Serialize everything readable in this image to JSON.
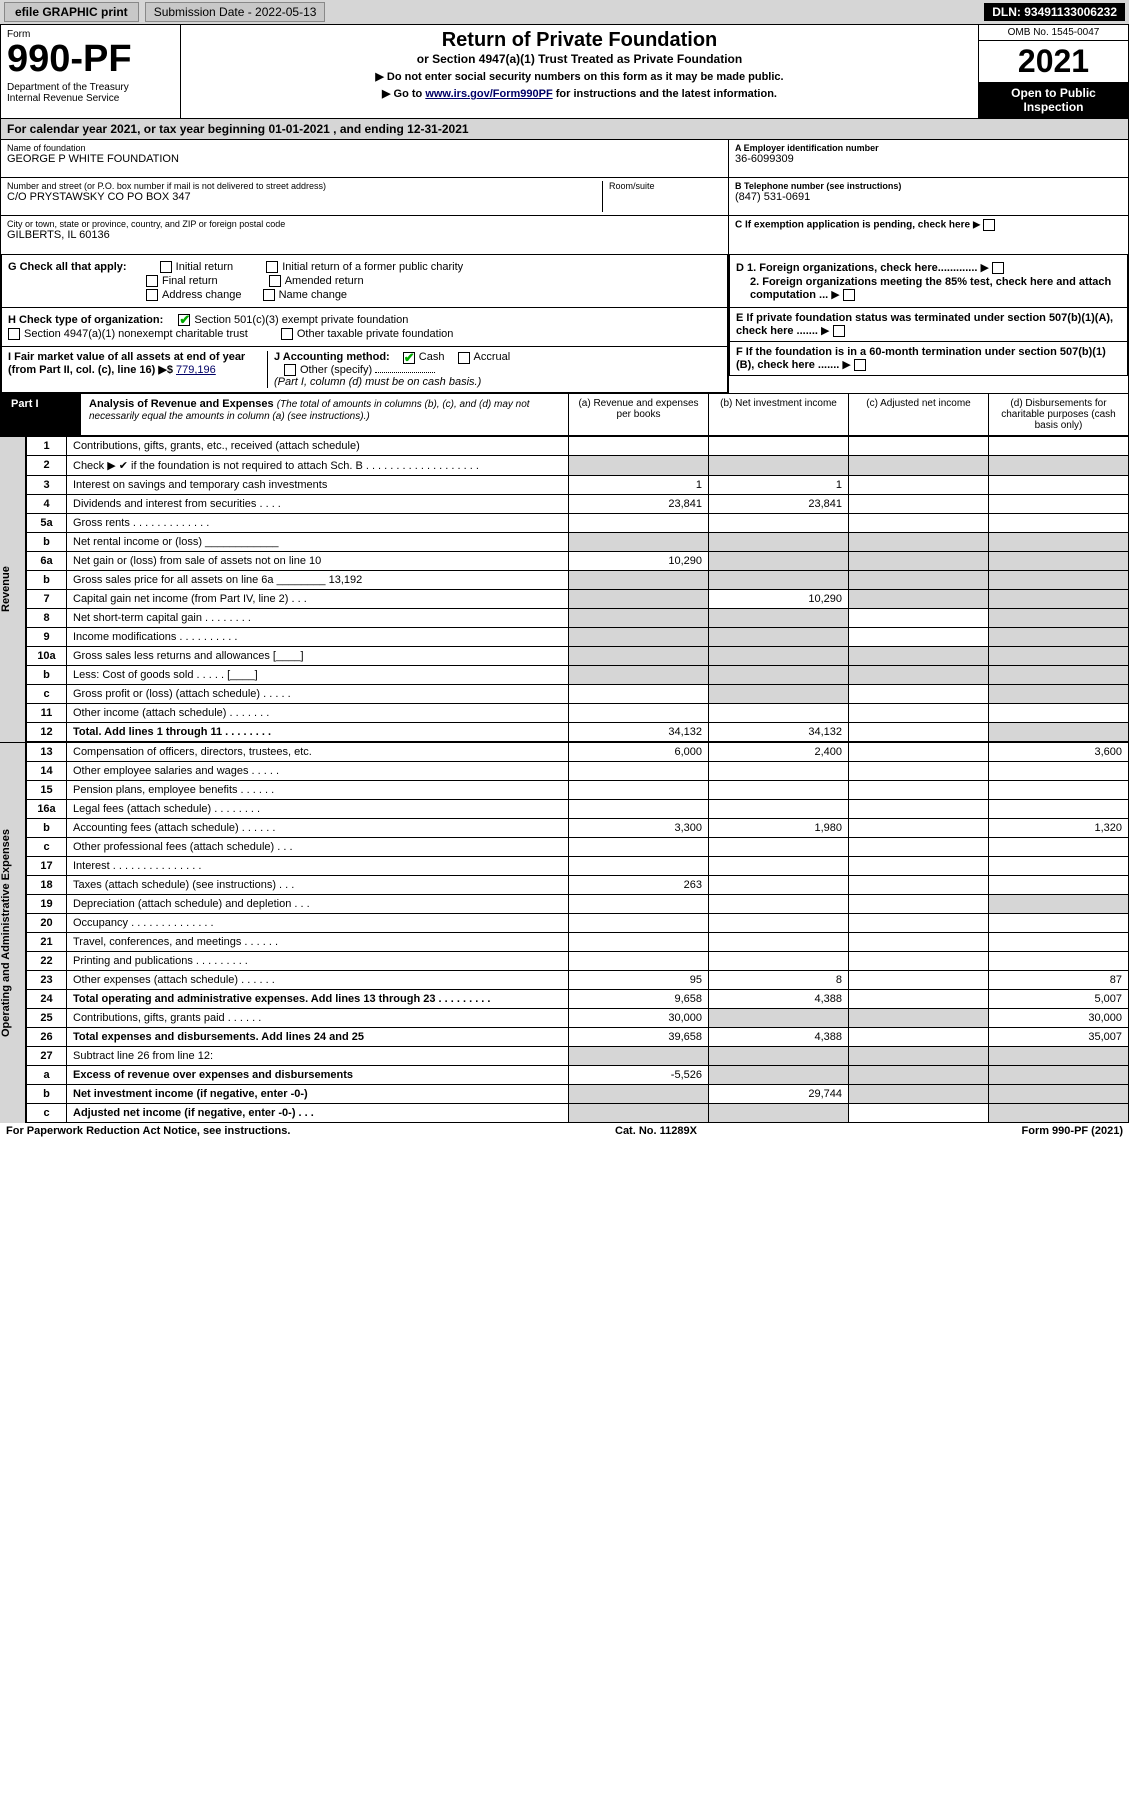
{
  "toolbar": {
    "efile": "efile GRAPHIC print",
    "sub_label": "Submission Date - 2022-05-13",
    "dln": "DLN: 93491133006232"
  },
  "header": {
    "form_word": "Form",
    "form_num": "990-PF",
    "dept": "Department of the Treasury\nInternal Revenue Service",
    "title": "Return of Private Foundation",
    "subtitle": "or Section 4947(a)(1) Trust Treated as Private Foundation",
    "note1": "▶ Do not enter social security numbers on this form as it may be made public.",
    "note2_pre": "▶ Go to ",
    "note2_link": "www.irs.gov/Form990PF",
    "note2_post": " for instructions and the latest information.",
    "omb": "OMB No. 1545-0047",
    "year": "2021",
    "inspect": "Open to Public\nInspection"
  },
  "calyear": "For calendar year 2021, or tax year beginning 01-01-2021             , and ending 12-31-2021",
  "foundation": {
    "name_label": "Name of foundation",
    "name": "GEORGE P WHITE FOUNDATION",
    "addr_label": "Number and street (or P.O. box number if mail is not delivered to street address)",
    "addr": "C/O PRYSTAWSKY CO PO BOX 347",
    "room_label": "Room/suite",
    "room": "",
    "city_label": "City or town, state or province, country, and ZIP or foreign postal code",
    "city": "GILBERTS, IL  60136",
    "ein_label": "A Employer identification number",
    "ein": "36-6099309",
    "tel_label": "B Telephone number (see instructions)",
    "tel": "(847) 531-0691",
    "c_label": "C If exemption application is pending, check here",
    "d1": "D 1. Foreign organizations, check here.............",
    "d2": "2. Foreign organizations meeting the 85% test, check here and attach computation ...",
    "e_label": "E If private foundation status was terminated under section 507(b)(1)(A), check here .......",
    "f_label": "F If the foundation is in a 60-month termination under section 507(b)(1)(B), check here .......",
    "g_label": "G Check all that apply:",
    "g_opts": [
      "Initial return",
      "Final return",
      "Address change",
      "Initial return of a former public charity",
      "Amended return",
      "Name change"
    ],
    "h_label": "H Check type of organization:",
    "h1": "Section 501(c)(3) exempt private foundation",
    "h2": "Section 4947(a)(1) nonexempt charitable trust",
    "h3": "Other taxable private foundation",
    "i_label": "I Fair market value of all assets at end of year (from Part II, col. (c), line 16) ▶$",
    "i_val": "779,196",
    "j_label": "J Accounting method:",
    "j_cash": "Cash",
    "j_accrual": "Accrual",
    "j_other": "Other (specify)",
    "j_note": "(Part I, column (d) must be on cash basis.)"
  },
  "part1": {
    "tag": "Part I",
    "title": "Analysis of Revenue and Expenses",
    "title_note": "(The total of amounts in columns (b), (c), and (d) may not necessarily equal the amounts in column (a) (see instructions).)",
    "col_a": "(a)  Revenue and expenses per books",
    "col_b": "(b)  Net investment income",
    "col_c": "(c)  Adjusted net income",
    "col_d": "(d)  Disbursements for charitable purposes (cash basis only)"
  },
  "side": {
    "revenue": "Revenue",
    "expenses": "Operating and Administrative Expenses"
  },
  "lines": [
    {
      "n": "1",
      "d": "Contributions, gifts, grants, etc., received (attach schedule)",
      "a": "",
      "b": "",
      "c": "",
      "dd": ""
    },
    {
      "n": "2",
      "d": "Check ▶ ✔ if the foundation is not required to attach Sch. B  . . . . . . . . . . . . . . . . . . .",
      "a": "",
      "b": "",
      "c": "",
      "dd": "",
      "shade_all": true
    },
    {
      "n": "3",
      "d": "Interest on savings and temporary cash investments",
      "a": "1",
      "b": "1",
      "c": "",
      "dd": ""
    },
    {
      "n": "4",
      "d": "Dividends and interest from securities  . . . .",
      "a": "23,841",
      "b": "23,841",
      "c": "",
      "dd": ""
    },
    {
      "n": "5a",
      "d": "Gross rents  .  .  .  .  .  .  .  .  .  .  .  .  .",
      "a": "",
      "b": "",
      "c": "",
      "dd": ""
    },
    {
      "n": "b",
      "d": "Net rental income or (loss)  ____________",
      "a": "",
      "b": "",
      "c": "",
      "dd": "",
      "shade_a": true,
      "shade_b": true,
      "shade_c": true,
      "shade_d": true
    },
    {
      "n": "6a",
      "d": "Net gain or (loss) from sale of assets not on line 10",
      "a": "10,290",
      "b": "",
      "c": "",
      "dd": "",
      "shade_b": true,
      "shade_c": true,
      "shade_d": true
    },
    {
      "n": "b",
      "d": "Gross sales price for all assets on line 6a ________  13,192",
      "a": "",
      "b": "",
      "c": "",
      "dd": "",
      "shade_a": true,
      "shade_b": true,
      "shade_c": true,
      "shade_d": true
    },
    {
      "n": "7",
      "d": "Capital gain net income (from Part IV, line 2)  . . .",
      "a": "",
      "b": "10,290",
      "c": "",
      "dd": "",
      "shade_a": true,
      "shade_c": true,
      "shade_d": true
    },
    {
      "n": "8",
      "d": "Net short-term capital gain  . . . . . . . .",
      "a": "",
      "b": "",
      "c": "",
      "dd": "",
      "shade_a": true,
      "shade_b": true,
      "shade_d": true
    },
    {
      "n": "9",
      "d": "Income modifications  . . . . . . . . . .",
      "a": "",
      "b": "",
      "c": "",
      "dd": "",
      "shade_a": true,
      "shade_b": true,
      "shade_d": true
    },
    {
      "n": "10a",
      "d": "Gross sales less returns and allowances  [____]",
      "a": "",
      "b": "",
      "c": "",
      "dd": "",
      "shade_a": true,
      "shade_b": true,
      "shade_c": true,
      "shade_d": true
    },
    {
      "n": "b",
      "d": "Less: Cost of goods sold  . . . . .  [____]",
      "a": "",
      "b": "",
      "c": "",
      "dd": "",
      "shade_a": true,
      "shade_b": true,
      "shade_c": true,
      "shade_d": true
    },
    {
      "n": "c",
      "d": "Gross profit or (loss) (attach schedule)  . . . . .",
      "a": "",
      "b": "",
      "c": "",
      "dd": "",
      "shade_b": true,
      "shade_d": true
    },
    {
      "n": "11",
      "d": "Other income (attach schedule)  . . . . . . .",
      "a": "",
      "b": "",
      "c": "",
      "dd": ""
    },
    {
      "n": "12",
      "d": "Total. Add lines 1 through 11  .  .  .  .  .  .  .  .",
      "a": "34,132",
      "b": "34,132",
      "c": "",
      "dd": "",
      "bold": true,
      "shade_d": true
    },
    {
      "n": "13",
      "d": "Compensation of officers, directors, trustees, etc.",
      "a": "6,000",
      "b": "2,400",
      "c": "",
      "dd": "3,600"
    },
    {
      "n": "14",
      "d": "Other employee salaries and wages  . . . . .",
      "a": "",
      "b": "",
      "c": "",
      "dd": ""
    },
    {
      "n": "15",
      "d": "Pension plans, employee benefits  . . . . . .",
      "a": "",
      "b": "",
      "c": "",
      "dd": ""
    },
    {
      "n": "16a",
      "d": "Legal fees (attach schedule)  . . . . . . . .",
      "a": "",
      "b": "",
      "c": "",
      "dd": ""
    },
    {
      "n": "b",
      "d": "Accounting fees (attach schedule)  . . . . . .",
      "a": "3,300",
      "b": "1,980",
      "c": "",
      "dd": "1,320"
    },
    {
      "n": "c",
      "d": "Other professional fees (attach schedule)  . . .",
      "a": "",
      "b": "",
      "c": "",
      "dd": ""
    },
    {
      "n": "17",
      "d": "Interest  . . . . . . . . . . . . . . .",
      "a": "",
      "b": "",
      "c": "",
      "dd": ""
    },
    {
      "n": "18",
      "d": "Taxes (attach schedule) (see instructions)  . . .",
      "a": "263",
      "b": "",
      "c": "",
      "dd": ""
    },
    {
      "n": "19",
      "d": "Depreciation (attach schedule) and depletion  . . .",
      "a": "",
      "b": "",
      "c": "",
      "dd": "",
      "shade_d": true
    },
    {
      "n": "20",
      "d": "Occupancy  . . . . . . . . . . . . . .",
      "a": "",
      "b": "",
      "c": "",
      "dd": ""
    },
    {
      "n": "21",
      "d": "Travel, conferences, and meetings  . . . . . .",
      "a": "",
      "b": "",
      "c": "",
      "dd": ""
    },
    {
      "n": "22",
      "d": "Printing and publications  . . . . . . . . .",
      "a": "",
      "b": "",
      "c": "",
      "dd": ""
    },
    {
      "n": "23",
      "d": "Other expenses (attach schedule)  . . . . . .",
      "a": "95",
      "b": "8",
      "c": "",
      "dd": "87"
    },
    {
      "n": "24",
      "d": "Total operating and administrative expenses. Add lines 13 through 23  . . . . . . . . .",
      "a": "9,658",
      "b": "4,388",
      "c": "",
      "dd": "5,007",
      "bold": true
    },
    {
      "n": "25",
      "d": "Contributions, gifts, grants paid  . . . . . .",
      "a": "30,000",
      "b": "",
      "c": "",
      "dd": "30,000",
      "shade_b": true,
      "shade_c": true
    },
    {
      "n": "26",
      "d": "Total expenses and disbursements. Add lines 24 and 25",
      "a": "39,658",
      "b": "4,388",
      "c": "",
      "dd": "35,007",
      "bold": true
    },
    {
      "n": "27",
      "d": "Subtract line 26 from line 12:",
      "a": "",
      "b": "",
      "c": "",
      "dd": "",
      "shade_a": true,
      "shade_b": true,
      "shade_c": true,
      "shade_d": true
    },
    {
      "n": "a",
      "d": "Excess of revenue over expenses and disbursements",
      "a": "-5,526",
      "b": "",
      "c": "",
      "dd": "",
      "bold": true,
      "shade_b": true,
      "shade_c": true,
      "shade_d": true
    },
    {
      "n": "b",
      "d": "Net investment income (if negative, enter -0-)",
      "a": "",
      "b": "29,744",
      "c": "",
      "dd": "",
      "bold": true,
      "shade_a": true,
      "shade_c": true,
      "shade_d": true
    },
    {
      "n": "c",
      "d": "Adjusted net income (if negative, enter -0-)  . . .",
      "a": "",
      "b": "",
      "c": "",
      "dd": "",
      "bold": true,
      "shade_a": true,
      "shade_b": true,
      "shade_d": true
    }
  ],
  "footer": {
    "left": "For Paperwork Reduction Act Notice, see instructions.",
    "mid": "Cat. No. 11289X",
    "right": "Form 990-PF (2021)"
  },
  "colors": {
    "shade": "#d6d6d6",
    "black": "#000000",
    "link": "#000066"
  }
}
